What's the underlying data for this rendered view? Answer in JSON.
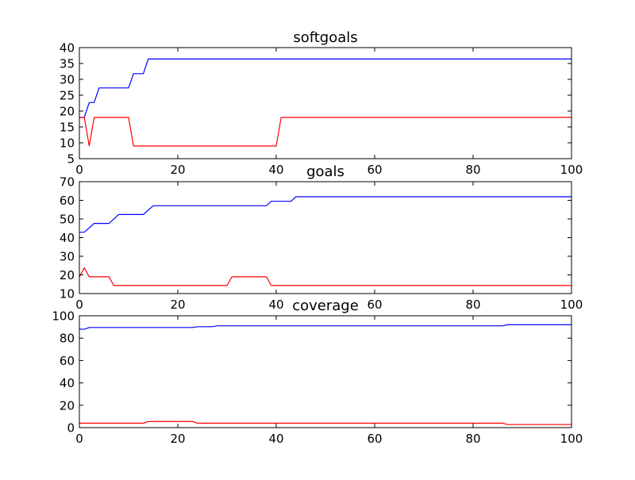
{
  "chart_data": [
    {
      "type": "line",
      "title": "softgoals",
      "xlim": [
        0,
        100
      ],
      "ylim": [
        5,
        40
      ],
      "xticks": [
        0,
        20,
        40,
        60,
        80,
        100
      ],
      "yticks": [
        5,
        10,
        15,
        20,
        25,
        30,
        35,
        40
      ],
      "grid": false,
      "series": [
        {
          "color": "#0000ff",
          "points": [
            [
              0,
              18
            ],
            [
              1,
              18
            ],
            [
              2,
              22.7
            ],
            [
              3,
              22.7
            ],
            [
              4,
              27.3
            ],
            [
              5,
              27.3
            ],
            [
              10,
              27.3
            ],
            [
              11,
              31.8
            ],
            [
              13,
              31.8
            ],
            [
              14,
              36.4
            ],
            [
              100,
              36.4
            ]
          ]
        },
        {
          "color": "#ff0000",
          "points": [
            [
              0,
              18
            ],
            [
              1,
              18
            ],
            [
              2,
              9
            ],
            [
              3,
              18
            ],
            [
              4,
              18
            ],
            [
              10,
              18
            ],
            [
              11,
              9
            ],
            [
              12,
              9
            ],
            [
              40,
              9
            ],
            [
              41,
              18
            ],
            [
              100,
              18
            ]
          ]
        }
      ]
    },
    {
      "type": "line",
      "title": "goals",
      "xlim": [
        0,
        100
      ],
      "ylim": [
        10,
        70
      ],
      "xticks": [
        0,
        20,
        40,
        60,
        80,
        100
      ],
      "yticks": [
        10,
        20,
        30,
        40,
        50,
        60,
        70
      ],
      "grid": false,
      "series": [
        {
          "color": "#0000ff",
          "points": [
            [
              0,
              42.9
            ],
            [
              1,
              42.9
            ],
            [
              3,
              47.6
            ],
            [
              6,
              47.6
            ],
            [
              8,
              52.4
            ],
            [
              13,
              52.4
            ],
            [
              15,
              57.1
            ],
            [
              38,
              57.1
            ],
            [
              39,
              59.5
            ],
            [
              43,
              59.5
            ],
            [
              44,
              61.9
            ],
            [
              100,
              61.9
            ]
          ]
        },
        {
          "color": "#ff0000",
          "points": [
            [
              0,
              19
            ],
            [
              1,
              23.8
            ],
            [
              2,
              19
            ],
            [
              6,
              19
            ],
            [
              7,
              14.3
            ],
            [
              30,
              14.3
            ],
            [
              31,
              19
            ],
            [
              38,
              19
            ],
            [
              39,
              14.3
            ],
            [
              100,
              14.3
            ]
          ]
        }
      ]
    },
    {
      "type": "line",
      "title": "coverage",
      "xlim": [
        0,
        100
      ],
      "ylim": [
        0,
        100
      ],
      "xticks": [
        0,
        20,
        40,
        60,
        80,
        100
      ],
      "yticks": [
        0,
        20,
        40,
        60,
        80,
        100
      ],
      "grid": false,
      "series": [
        {
          "color": "#0000ff",
          "points": [
            [
              0,
              88
            ],
            [
              1,
              88
            ],
            [
              2,
              89.5
            ],
            [
              23,
              89.5
            ],
            [
              24,
              90.2
            ],
            [
              27,
              90.2
            ],
            [
              28,
              91
            ],
            [
              86,
              91
            ],
            [
              87,
              92
            ],
            [
              100,
              92
            ]
          ]
        },
        {
          "color": "#ff0000",
          "points": [
            [
              0,
              4
            ],
            [
              13,
              4
            ],
            [
              14,
              5.5
            ],
            [
              23,
              5.5
            ],
            [
              24,
              4
            ],
            [
              86,
              4
            ],
            [
              87,
              2.8
            ],
            [
              100,
              2.8
            ]
          ]
        }
      ]
    }
  ]
}
